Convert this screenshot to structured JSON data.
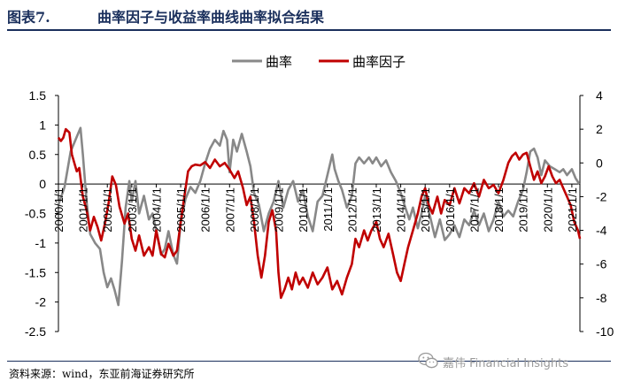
{
  "header": {
    "figure_label": "图表7.",
    "figure_title": "曲率因子与收益率曲线曲率拟合结果"
  },
  "footer": {
    "source": "资料来源：wind，东亚前海证券研究所",
    "watermark": "嘉伟 Financial Insights"
  },
  "colors": {
    "curvature": "#888888",
    "curvature_factor": "#c00000",
    "title": "#1a2f5c"
  },
  "chart_data": {
    "type": "line",
    "legend_position": "top",
    "grid": false,
    "y_left": {
      "ylim": [
        -2.5,
        1.5
      ],
      "ticks": [
        "1.5",
        "1",
        "0.5",
        "0",
        "-0.5",
        "-1",
        "-1.5",
        "-2",
        "-2.5"
      ]
    },
    "y_right": {
      "ylim": [
        -10,
        4
      ],
      "ticks": [
        "4",
        "2",
        "0",
        "-2",
        "-4",
        "-6",
        "-8",
        "-10"
      ]
    },
    "x_range": [
      2000.0,
      2021.33
    ],
    "x_tick_labels": [
      "2000/1/1",
      "2001/1/1",
      "2002/1/1",
      "2003/1/1",
      "2004/1/1",
      "2005/1/1",
      "2006/1/1",
      "2007/1/1",
      "2008/1/1",
      "2009/1/1",
      "2010/1/1",
      "2011/1/1",
      "2012/1/1",
      "2013/1/1",
      "2014/1/1",
      "2015/1/1",
      "2016/1/1",
      "2017/1/1",
      "2018/1/1",
      "2019/1/1",
      "2020/1/1",
      "2021/1/1"
    ],
    "series": [
      {
        "name": "曲率",
        "axis": "left",
        "points": [
          [
            2000.0,
            -0.35
          ],
          [
            2000.25,
            -0.05
          ],
          [
            2000.5,
            0.55
          ],
          [
            2000.75,
            0.8
          ],
          [
            2000.9,
            0.95
          ],
          [
            2001.0,
            0.5
          ],
          [
            2001.15,
            -0.3
          ],
          [
            2001.3,
            -0.85
          ],
          [
            2001.5,
            -1.0
          ],
          [
            2001.7,
            -1.1
          ],
          [
            2001.85,
            -1.5
          ],
          [
            2002.0,
            -1.75
          ],
          [
            2002.15,
            -1.6
          ],
          [
            2002.3,
            -1.8
          ],
          [
            2002.45,
            -2.05
          ],
          [
            2002.6,
            -1.3
          ],
          [
            2002.75,
            -0.4
          ],
          [
            2002.9,
            0.05
          ],
          [
            2003.0,
            -0.3
          ],
          [
            2003.15,
            0.05
          ],
          [
            2003.3,
            -0.5
          ],
          [
            2003.5,
            -0.2
          ],
          [
            2003.7,
            -0.6
          ],
          [
            2003.85,
            -0.5
          ],
          [
            2004.0,
            -0.8
          ],
          [
            2004.2,
            -1.2
          ],
          [
            2004.35,
            -1.1
          ],
          [
            2004.5,
            -0.8
          ],
          [
            2004.7,
            -1.2
          ],
          [
            2004.85,
            -1.35
          ],
          [
            2005.0,
            -0.65
          ],
          [
            2005.2,
            -0.25
          ],
          [
            2005.4,
            -0.05
          ],
          [
            2005.6,
            -0.15
          ],
          [
            2005.8,
            0.05
          ],
          [
            2006.0,
            0.35
          ],
          [
            2006.2,
            0.6
          ],
          [
            2006.4,
            0.75
          ],
          [
            2006.6,
            0.65
          ],
          [
            2006.75,
            0.9
          ],
          [
            2006.9,
            0.75
          ],
          [
            2007.0,
            0.2
          ],
          [
            2007.15,
            0.75
          ],
          [
            2007.3,
            0.55
          ],
          [
            2007.5,
            0.85
          ],
          [
            2007.7,
            0.55
          ],
          [
            2007.85,
            0.3
          ],
          [
            2008.0,
            -0.15
          ],
          [
            2008.2,
            -0.35
          ],
          [
            2008.4,
            -0.8
          ],
          [
            2008.6,
            -0.5
          ],
          [
            2008.8,
            -0.3
          ],
          [
            2009.0,
            0.05
          ],
          [
            2009.2,
            -0.4
          ],
          [
            2009.4,
            -0.1
          ],
          [
            2009.6,
            0.05
          ],
          [
            2009.8,
            -0.3
          ],
          [
            2010.0,
            -0.1
          ],
          [
            2010.2,
            -0.55
          ],
          [
            2010.4,
            -0.8
          ],
          [
            2010.6,
            -0.3
          ],
          [
            2010.8,
            -0.2
          ],
          [
            2011.0,
            0.15
          ],
          [
            2011.2,
            0.5
          ],
          [
            2011.3,
            0.25
          ],
          [
            2011.45,
            0.05
          ],
          [
            2011.6,
            -0.1
          ],
          [
            2011.8,
            -0.4
          ],
          [
            2012.0,
            -0.2
          ],
          [
            2012.15,
            0.35
          ],
          [
            2012.3,
            0.45
          ],
          [
            2012.5,
            0.35
          ],
          [
            2012.7,
            0.45
          ],
          [
            2012.85,
            0.35
          ],
          [
            2013.0,
            0.45
          ],
          [
            2013.2,
            0.3
          ],
          [
            2013.4,
            0.4
          ],
          [
            2013.6,
            0.2
          ],
          [
            2013.8,
            0.05
          ],
          [
            2014.0,
            -0.15
          ],
          [
            2014.15,
            -0.35
          ],
          [
            2014.35,
            -0.6
          ],
          [
            2014.5,
            -0.4
          ],
          [
            2014.7,
            -0.75
          ],
          [
            2014.85,
            -0.5
          ],
          [
            2015.0,
            -0.2
          ],
          [
            2015.2,
            -0.55
          ],
          [
            2015.4,
            -0.9
          ],
          [
            2015.6,
            -0.6
          ],
          [
            2015.8,
            -0.95
          ],
          [
            2016.0,
            -0.85
          ],
          [
            2016.2,
            -0.7
          ],
          [
            2016.4,
            -0.9
          ],
          [
            2016.6,
            -0.6
          ],
          [
            2016.8,
            -0.7
          ],
          [
            2017.0,
            -0.45
          ],
          [
            2017.2,
            -0.7
          ],
          [
            2017.4,
            -0.5
          ],
          [
            2017.6,
            -0.8
          ],
          [
            2017.8,
            -0.6
          ],
          [
            2018.0,
            -0.3
          ],
          [
            2018.2,
            -0.55
          ],
          [
            2018.4,
            -0.45
          ],
          [
            2018.6,
            -0.55
          ],
          [
            2018.8,
            -0.3
          ],
          [
            2019.0,
            -0.1
          ],
          [
            2019.15,
            0.2
          ],
          [
            2019.3,
            0.55
          ],
          [
            2019.45,
            0.6
          ],
          [
            2019.6,
            0.45
          ],
          [
            2019.75,
            0.15
          ],
          [
            2019.9,
            0.4
          ],
          [
            2020.1,
            0.3
          ],
          [
            2020.3,
            0.25
          ],
          [
            2020.5,
            0.2
          ],
          [
            2020.65,
            0.25
          ],
          [
            2020.8,
            0.15
          ],
          [
            2021.0,
            0.25
          ],
          [
            2021.15,
            0.1
          ],
          [
            2021.3,
            0.0
          ]
        ]
      },
      {
        "name": "曲率因子",
        "axis": "right",
        "points": [
          [
            2000.0,
            1.5
          ],
          [
            2000.1,
            1.3
          ],
          [
            2000.2,
            1.5
          ],
          [
            2000.3,
            2.0
          ],
          [
            2000.45,
            1.8
          ],
          [
            2000.55,
            0.5
          ],
          [
            2000.75,
            -0.5
          ],
          [
            2000.85,
            -0.3
          ],
          [
            2001.0,
            -2.0
          ],
          [
            2001.15,
            -2.8
          ],
          [
            2001.3,
            -4.0
          ],
          [
            2001.45,
            -3.2
          ],
          [
            2001.6,
            -3.8
          ],
          [
            2001.75,
            -4.6
          ],
          [
            2001.9,
            -3.6
          ],
          [
            2002.05,
            -2.4
          ],
          [
            2002.2,
            -0.8
          ],
          [
            2002.35,
            -1.3
          ],
          [
            2002.5,
            -2.6
          ],
          [
            2002.7,
            -3.6
          ],
          [
            2002.85,
            -3.0
          ],
          [
            2003.0,
            -4.5
          ],
          [
            2003.15,
            -5.2
          ],
          [
            2003.3,
            -4.3
          ],
          [
            2003.5,
            -5.5
          ],
          [
            2003.7,
            -5.0
          ],
          [
            2003.85,
            -5.5
          ],
          [
            2004.0,
            -4.0
          ],
          [
            2004.2,
            -5.4
          ],
          [
            2004.35,
            -5.6
          ],
          [
            2004.5,
            -4.8
          ],
          [
            2004.7,
            -5.5
          ],
          [
            2004.85,
            -5.2
          ],
          [
            2005.0,
            -3.5
          ],
          [
            2005.15,
            -2.0
          ],
          [
            2005.3,
            -0.5
          ],
          [
            2005.45,
            -0.2
          ],
          [
            2005.6,
            -0.1
          ],
          [
            2005.8,
            -0.15
          ],
          [
            2006.0,
            0.05
          ],
          [
            2006.2,
            -0.3
          ],
          [
            2006.4,
            0.2
          ],
          [
            2006.6,
            -0.2
          ],
          [
            2006.8,
            0.0
          ],
          [
            2007.0,
            -0.4
          ],
          [
            2007.2,
            -0.9
          ],
          [
            2007.35,
            -0.5
          ],
          [
            2007.55,
            -1.5
          ],
          [
            2007.7,
            -2.5
          ],
          [
            2007.85,
            -2.0
          ],
          [
            2008.0,
            -3.5
          ],
          [
            2008.15,
            -5.5
          ],
          [
            2008.3,
            -6.8
          ],
          [
            2008.45,
            -5.5
          ],
          [
            2008.6,
            -3.5
          ],
          [
            2008.75,
            -2.8
          ],
          [
            2008.9,
            -4.0
          ],
          [
            2009.0,
            -6.5
          ],
          [
            2009.1,
            -8.0
          ],
          [
            2009.25,
            -7.5
          ],
          [
            2009.4,
            -6.8
          ],
          [
            2009.55,
            -7.5
          ],
          [
            2009.7,
            -6.5
          ],
          [
            2009.85,
            -7.2
          ],
          [
            2010.0,
            -6.8
          ],
          [
            2010.2,
            -7.4
          ],
          [
            2010.4,
            -6.5
          ],
          [
            2010.6,
            -7.2
          ],
          [
            2010.8,
            -6.8
          ],
          [
            2011.0,
            -6.2
          ],
          [
            2011.2,
            -7.5
          ],
          [
            2011.4,
            -7.0
          ],
          [
            2011.6,
            -7.8
          ],
          [
            2011.8,
            -6.8
          ],
          [
            2012.0,
            -6.0
          ],
          [
            2012.15,
            -4.5
          ],
          [
            2012.3,
            -5.0
          ],
          [
            2012.5,
            -4.0
          ],
          [
            2012.65,
            -4.6
          ],
          [
            2012.8,
            -4.0
          ],
          [
            2013.0,
            -3.5
          ],
          [
            2013.15,
            -4.5
          ],
          [
            2013.3,
            -5.0
          ],
          [
            2013.5,
            -4.2
          ],
          [
            2013.7,
            -5.5
          ],
          [
            2013.85,
            -6.5
          ],
          [
            2014.0,
            -7.0
          ],
          [
            2014.15,
            -6.0
          ],
          [
            2014.3,
            -5.0
          ],
          [
            2014.5,
            -4.0
          ],
          [
            2014.7,
            -3.0
          ],
          [
            2014.85,
            -2.0
          ],
          [
            2015.0,
            -1.5
          ],
          [
            2015.15,
            -2.5
          ],
          [
            2015.3,
            -3.0
          ],
          [
            2015.5,
            -2.0
          ],
          [
            2015.65,
            -3.0
          ],
          [
            2015.8,
            -2.2
          ],
          [
            2016.0,
            -2.5
          ],
          [
            2016.2,
            -1.5
          ],
          [
            2016.4,
            -2.4
          ],
          [
            2016.6,
            -1.5
          ],
          [
            2016.8,
            -1.8
          ],
          [
            2017.0,
            -1.2
          ],
          [
            2017.2,
            -2.0
          ],
          [
            2017.4,
            -1.0
          ],
          [
            2017.6,
            -1.5
          ],
          [
            2017.8,
            -1.3
          ],
          [
            2018.0,
            -1.8
          ],
          [
            2018.2,
            -1.0
          ],
          [
            2018.4,
            0.0
          ],
          [
            2018.55,
            0.4
          ],
          [
            2018.7,
            0.6
          ],
          [
            2018.85,
            0.2
          ],
          [
            2019.0,
            0.5
          ],
          [
            2019.15,
            0.6
          ],
          [
            2019.3,
            -0.2
          ],
          [
            2019.45,
            -1.0
          ],
          [
            2019.6,
            -0.5
          ],
          [
            2019.75,
            -1.2
          ],
          [
            2019.9,
            -0.8
          ],
          [
            2020.05,
            -0.2
          ],
          [
            2020.2,
            -0.8
          ],
          [
            2020.35,
            -1.2
          ],
          [
            2020.5,
            -1.0
          ],
          [
            2020.65,
            -1.5
          ],
          [
            2020.8,
            -2.0
          ],
          [
            2020.95,
            -2.5
          ],
          [
            2021.1,
            -3.5
          ],
          [
            2021.25,
            -4.0
          ],
          [
            2021.33,
            -4.5
          ]
        ]
      }
    ]
  }
}
